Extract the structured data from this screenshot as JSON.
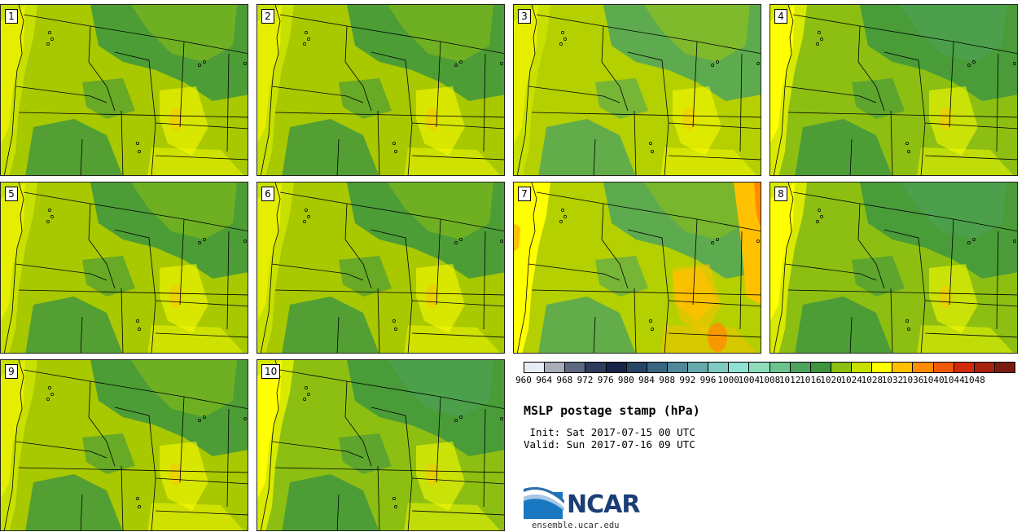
{
  "title": "MSLP postage stamp (hPa)",
  "init_label": " Init: Sat 2017-07-15 00 UTC",
  "valid_label": "Valid: Sun 2017-07-16 09 UTC",
  "website": "ensemble.ucar.edu",
  "logo_text": "NCAR",
  "members": [
    {
      "label": "1",
      "style": "normal"
    },
    {
      "label": "2",
      "style": "normal"
    },
    {
      "label": "3",
      "style": "yellowish"
    },
    {
      "label": "4",
      "style": "greenish"
    },
    {
      "label": "5",
      "style": "normal"
    },
    {
      "label": "6",
      "style": "normal"
    },
    {
      "label": "7",
      "style": "high"
    },
    {
      "label": "8",
      "style": "greenish"
    },
    {
      "label": "9",
      "style": "normal"
    },
    {
      "label": "10",
      "style": "greenish"
    }
  ],
  "colorbar": {
    "unit": "hPa",
    "levels": [
      "960",
      "964",
      "968",
      "972",
      "976",
      "980",
      "984",
      "988",
      "992",
      "996",
      "1000",
      "1004",
      "1008",
      "1012",
      "1016",
      "1020",
      "1024",
      "1028",
      "1032",
      "1036",
      "1040",
      "1044",
      "1048"
    ],
    "colors": [
      "#e8ecf4",
      "#a9adbb",
      "#5f6880",
      "#2d3c5c",
      "#172447",
      "#264464",
      "#3a6682",
      "#4e8899",
      "#66a9ac",
      "#7fcbc1",
      "#8fe3d3",
      "#8fdcbc",
      "#6bc48c",
      "#4ea45c",
      "#3d9540",
      "#8dbf12",
      "#c7e000",
      "#ffff00",
      "#ffc000",
      "#ff8c00",
      "#f05a0a",
      "#d22a0a",
      "#a8200e",
      "#7a1c10"
    ]
  }
}
